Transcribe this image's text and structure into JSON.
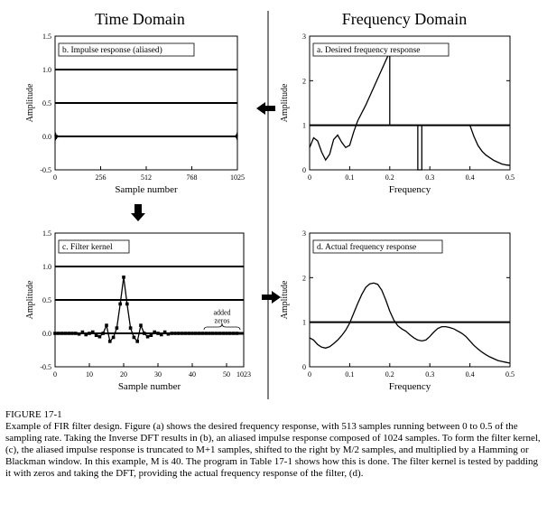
{
  "figure": {
    "headers": {
      "left": "Time Domain",
      "right": "Frequency Domain"
    },
    "caption": {
      "number": "FIGURE 17-1",
      "text": "Example of FIR filter design.  Figure (a) shows the desired frequency response, with 513 samples running between 0 to 0.5 of the sampling rate.  Taking the Inverse DFT results in (b), an aliased impulse response composed of 1024 samples.  To form the filter kernel, (c), the aliased impulse response is truncated to M+1 samples, shifted to the right by M/2 samples, and multiplied by a Hamming or Blackman window.  In this example, M is 40.  The program in Table 17-1 shows how this is done. The filter kernel is tested by padding it with zeros and taking the DFT, providing the actual frequency response of the filter, (d)."
    },
    "arrows": [
      "left",
      "down",
      "right"
    ]
  },
  "chart_data": [
    {
      "id": "b",
      "type": "line",
      "title": "b.  Impulse response (aliased)",
      "xlabel": "Sample number",
      "ylabel": "Amplitude",
      "xlim": [
        0,
        1025
      ],
      "ylim": [
        -0.5,
        1.5
      ],
      "xticks": [
        "0",
        "256",
        "512",
        "768",
        "1025"
      ],
      "yticks": [
        "-0.5",
        "0.0",
        "0.5",
        "1.0",
        "1.5"
      ],
      "series": [
        {
          "values_note": "",
          "x": [
            0,
            1,
            2,
            3,
            4,
            5,
            6,
            8,
            10,
            14,
            20,
            30,
            100,
            500,
            1000,
            1010,
            1016,
            1019,
            1020,
            1021,
            1022,
            1023,
            1024,
            1025
          ],
          "y": [
            0.0,
            0.06,
            -0.06,
            0.05,
            -0.04,
            0.03,
            -0.03,
            0.02,
            -0.015,
            0.01,
            -0.005,
            0.0,
            0.0,
            0.0,
            0.0,
            -0.005,
            0.01,
            -0.02,
            0.03,
            -0.03,
            0.04,
            -0.05,
            0.06,
            0.0
          ]
        }
      ],
      "hlines": [
        1.0,
        0.5,
        0.0
      ]
    },
    {
      "id": "c",
      "type": "line",
      "title": "c.  Filter kernel",
      "xlabel": "Sample number",
      "ylabel": "Amplitude",
      "xlim": [
        0,
        1023
      ],
      "ylim": [
        -0.5,
        1.5
      ],
      "xticks": [
        "0",
        "10",
        "20",
        "30",
        "40",
        "50",
        "1023"
      ],
      "yticks": [
        "-0.5",
        "0.0",
        "0.5",
        "1.0",
        "1.5"
      ],
      "annotation": [
        "added",
        "zeros"
      ],
      "x": [
        0,
        1,
        2,
        3,
        4,
        5,
        6,
        7,
        8,
        9,
        10,
        11,
        12,
        13,
        14,
        15,
        16,
        17,
        18,
        19,
        20,
        21,
        22,
        23,
        24,
        25,
        26,
        27,
        28,
        29,
        30,
        31,
        32,
        33,
        34,
        35,
        36,
        37,
        38,
        39,
        40,
        41,
        42,
        43,
        44,
        45,
        46,
        47,
        48,
        49,
        50,
        51,
        52,
        53
      ],
      "values": [
        0.0,
        0.0,
        0.0,
        0.0,
        0.0,
        0.0,
        0.0,
        -0.01,
        0.02,
        -0.02,
        0.0,
        0.02,
        -0.03,
        -0.05,
        0.0,
        0.12,
        -0.12,
        -0.06,
        0.08,
        0.44,
        0.84,
        0.44,
        0.08,
        -0.06,
        -0.12,
        0.12,
        0.0,
        -0.05,
        -0.03,
        0.02,
        0.0,
        -0.02,
        0.02,
        -0.01,
        0.0,
        0.0,
        0.0,
        0.0,
        0.0,
        0.0,
        0.0,
        0.0,
        0.0,
        0.0,
        0.0,
        0.0,
        0.0,
        0.0,
        0.0,
        0.0,
        0.0,
        0.0,
        0.0,
        0.0
      ],
      "hlines": [
        1.0,
        0.5,
        0.0
      ]
    },
    {
      "id": "a",
      "type": "line",
      "title": "a.  Desired frequency response",
      "xlabel": "Frequency",
      "ylabel": "Amplitude",
      "xlim": [
        0,
        0.5
      ],
      "ylim": [
        0,
        3
      ],
      "xticks": [
        "0",
        "0.1",
        "0.2",
        "0.3",
        "0.4",
        "0.5"
      ],
      "yticks": [
        "0",
        "1",
        "2",
        "3"
      ],
      "x": [
        0,
        0.01,
        0.02,
        0.03,
        0.04,
        0.05,
        0.06,
        0.07,
        0.08,
        0.09,
        0.1,
        0.11,
        0.12,
        0.14,
        0.16,
        0.18,
        0.195,
        0.2,
        0.2,
        0.24,
        0.27,
        0.27,
        0.275,
        0.28,
        0.28,
        0.32,
        0.38,
        0.4,
        0.41,
        0.42,
        0.43,
        0.44,
        0.45,
        0.46,
        0.47,
        0.48,
        0.49,
        0.5
      ],
      "values": [
        0.5,
        0.72,
        0.65,
        0.4,
        0.22,
        0.35,
        0.68,
        0.78,
        0.62,
        0.5,
        0.55,
        0.85,
        1.1,
        1.45,
        1.85,
        2.25,
        2.55,
        2.6,
        1.0,
        1.0,
        1.0,
        0.0,
        0.0,
        0.0,
        1.0,
        1.0,
        1.0,
        1.0,
        0.75,
        0.55,
        0.42,
        0.33,
        0.27,
        0.21,
        0.17,
        0.13,
        0.11,
        0.1
      ],
      "hlines": [
        1.0
      ]
    },
    {
      "id": "d",
      "type": "line",
      "title": "d.  Actual frequency response",
      "xlabel": "Frequency",
      "ylabel": "Amplitude",
      "xlim": [
        0,
        0.5
      ],
      "ylim": [
        0,
        3
      ],
      "xticks": [
        "0",
        "0.1",
        "0.2",
        "0.3",
        "0.4",
        "0.5"
      ],
      "yticks": [
        "0",
        "1",
        "2",
        "3"
      ],
      "x": [
        0,
        0.01,
        0.02,
        0.03,
        0.04,
        0.05,
        0.06,
        0.07,
        0.08,
        0.09,
        0.1,
        0.11,
        0.12,
        0.13,
        0.14,
        0.15,
        0.16,
        0.17,
        0.18,
        0.19,
        0.2,
        0.21,
        0.22,
        0.23,
        0.24,
        0.25,
        0.26,
        0.27,
        0.28,
        0.29,
        0.3,
        0.31,
        0.32,
        0.33,
        0.34,
        0.35,
        0.36,
        0.37,
        0.38,
        0.39,
        0.4,
        0.41,
        0.42,
        0.43,
        0.44,
        0.45,
        0.46,
        0.47,
        0.48,
        0.49,
        0.5
      ],
      "values": [
        0.65,
        0.6,
        0.5,
        0.44,
        0.42,
        0.45,
        0.52,
        0.6,
        0.7,
        0.82,
        0.98,
        1.2,
        1.42,
        1.62,
        1.78,
        1.86,
        1.88,
        1.85,
        1.72,
        1.5,
        1.25,
        1.05,
        0.92,
        0.85,
        0.8,
        0.72,
        0.65,
        0.6,
        0.58,
        0.6,
        0.68,
        0.78,
        0.86,
        0.9,
        0.9,
        0.88,
        0.85,
        0.8,
        0.75,
        0.68,
        0.58,
        0.48,
        0.4,
        0.33,
        0.27,
        0.22,
        0.18,
        0.14,
        0.12,
        0.1,
        0.08
      ],
      "hlines": [
        1.0
      ]
    }
  ]
}
